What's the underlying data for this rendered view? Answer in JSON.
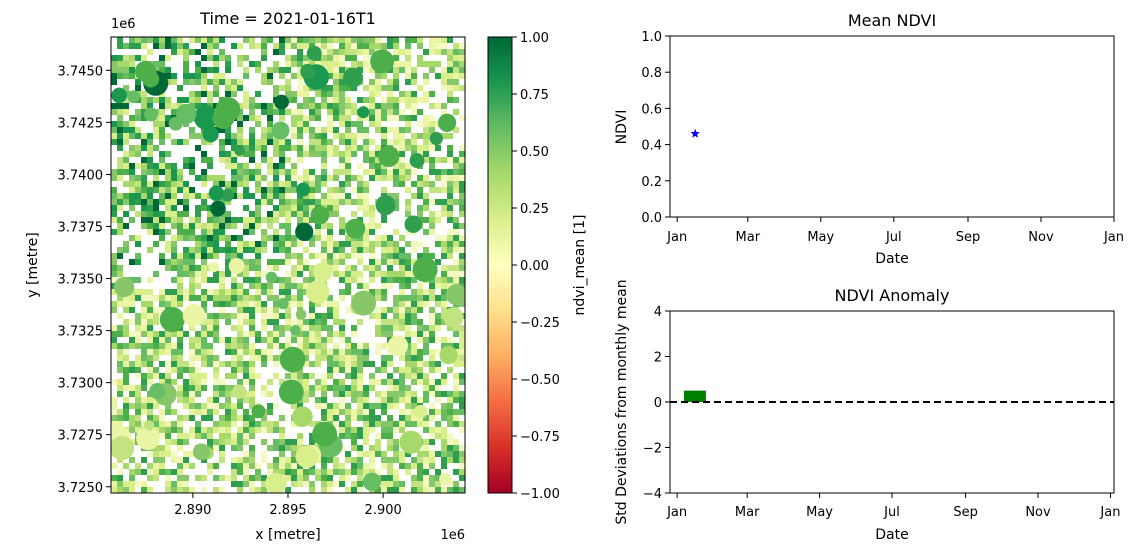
{
  "chart_data": [
    {
      "type": "heatmap",
      "title": "Time = 2021-01-16T1",
      "xlabel": "x [metre]",
      "ylabel": "y [metre]",
      "x_ticks": [
        "2.890",
        "2.895",
        "2.900"
      ],
      "x_tick_values": [
        2.89,
        2.895,
        2.9
      ],
      "x_range": [
        2.8857,
        2.9043
      ],
      "x_offset_label": "1e6",
      "y_ticks": [
        "3.7450",
        "3.7425",
        "3.7400",
        "3.7375",
        "3.7350",
        "3.7325",
        "3.7300",
        "3.7275",
        "3.7250"
      ],
      "y_tick_values": [
        3.745,
        3.7425,
        3.74,
        3.7375,
        3.735,
        3.7325,
        3.73,
        3.7275,
        3.725
      ],
      "y_range": [
        3.7247,
        3.7466
      ],
      "y_offset_label": "1e6",
      "colorbar": {
        "label": "ndvi_mean [1]",
        "range": [
          -1.0,
          1.0
        ],
        "ticks": [
          "1.00",
          "0.75",
          "0.50",
          "0.25",
          "0.00",
          "−0.25",
          "−0.50",
          "−0.75",
          "−1.00"
        ],
        "tick_values": [
          1.0,
          0.75,
          0.5,
          0.25,
          0.0,
          -0.25,
          -0.5,
          -0.75,
          -1.0
        ],
        "colormap": "RdYlGn"
      }
    },
    {
      "type": "scatter",
      "title": "Mean NDVI",
      "xlabel": "Date",
      "ylabel": "NDVI",
      "x_ticks": [
        "Jan",
        "Mar",
        "May",
        "Jul",
        "Sep",
        "Nov",
        "Jan"
      ],
      "x_tick_dates": [
        "2021-01-01",
        "2021-03-01",
        "2021-05-01",
        "2021-07-01",
        "2021-09-01",
        "2021-11-01",
        "2022-01-01"
      ],
      "x_range": [
        "2020-12-26",
        "2022-01-01"
      ],
      "y_ticks": [
        "0.0",
        "0.2",
        "0.4",
        "0.6",
        "0.8",
        "1.0"
      ],
      "ylim": [
        0,
        1
      ],
      "points": [
        {
          "x": "2021-01-16",
          "y": 0.46
        }
      ],
      "marker": "star",
      "color": "#0000ff"
    },
    {
      "type": "bar",
      "title": "NDVI Anomaly",
      "xlabel": "Date",
      "ylabel": "Std Deviations from monthly mean",
      "x_ticks": [
        "Jan",
        "Mar",
        "May",
        "Jul",
        "Sep",
        "Nov",
        "Jan"
      ],
      "x_tick_dates": [
        "2021-01-01",
        "2021-03-01",
        "2021-05-01",
        "2021-07-01",
        "2021-09-01",
        "2021-11-01",
        "2022-01-01"
      ],
      "x_range": [
        "2020-12-26",
        "2022-01-04"
      ],
      "y_ticks": [
        "4",
        "2",
        "0",
        "−2",
        "−4"
      ],
      "ylim": [
        -4,
        4
      ],
      "bars": [
        {
          "x": "2021-01-16",
          "value": 0.5,
          "color": "#008000"
        }
      ],
      "reference_line": {
        "y": 0,
        "style": "dashed",
        "color": "#000000"
      }
    }
  ]
}
